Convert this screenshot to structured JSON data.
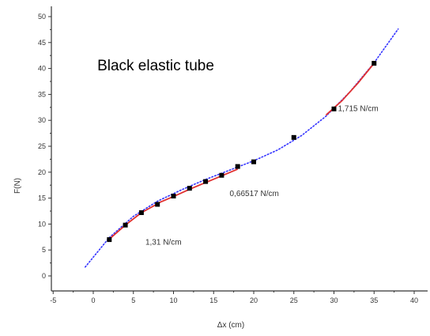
{
  "chart_data": {
    "type": "scatter",
    "xlabel": "Δx (cm)",
    "ylabel": "F(N)",
    "xlim": [
      -5,
      42
    ],
    "ylim": [
      -2,
      52
    ],
    "xticks": [
      -5,
      0,
      5,
      10,
      15,
      20,
      25,
      30,
      35,
      40
    ],
    "yticks": [
      0,
      5,
      10,
      15,
      20,
      25,
      30,
      35,
      40,
      45,
      50
    ],
    "grid": false,
    "series": [
      {
        "kind": "points",
        "color": "#000000",
        "x": [
          2,
          4,
          6,
          8,
          10,
          12,
          14,
          16,
          18,
          20,
          25,
          30,
          35
        ],
        "y": [
          7,
          9.8,
          12.2,
          13.8,
          15.4,
          16.9,
          18.2,
          19.4,
          21.1,
          22,
          26.7,
          32.2,
          41
        ]
      },
      {
        "kind": "dotted-curve",
        "color": "#3333ff",
        "x": [
          -1,
          2,
          5,
          8,
          11,
          14,
          17,
          20,
          23,
          26,
          29,
          32,
          35,
          38
        ],
        "y": [
          1.7,
          7.4,
          11.5,
          14.4,
          16.6,
          18.6,
          20.4,
          22.2,
          24.3,
          27.1,
          30.8,
          35.5,
          41.1,
          47.6
        ]
      },
      {
        "kind": "fit-line",
        "color": "#e03030",
        "x": [
          2,
          4,
          6,
          8
        ],
        "y": [
          7.1,
          9.8,
          12.2,
          13.9
        ]
      },
      {
        "kind": "fit-line",
        "color": "#e03030",
        "x": [
          8,
          10,
          12,
          14,
          16,
          18
        ],
        "y": [
          14.0,
          15.3,
          16.7,
          18.0,
          19.3,
          20.6
        ]
      },
      {
        "kind": "fit-line",
        "color": "#e03030",
        "x": [
          29,
          31,
          33,
          35
        ],
        "y": [
          31.0,
          33.8,
          37.2,
          41.0
        ]
      }
    ],
    "annotations": [
      {
        "text": "Black elastic tube",
        "x": 0.5,
        "y": 39.6,
        "style": "big"
      },
      {
        "text": "1,715 N/cm",
        "x": 30.5,
        "y": 31.8,
        "style": "small"
      },
      {
        "text": "0,66517  N/cm",
        "x": 17,
        "y": 15.4,
        "style": "small"
      },
      {
        "text": "1,31 N/cm",
        "x": 6.5,
        "y": 6,
        "style": "small"
      }
    ]
  }
}
